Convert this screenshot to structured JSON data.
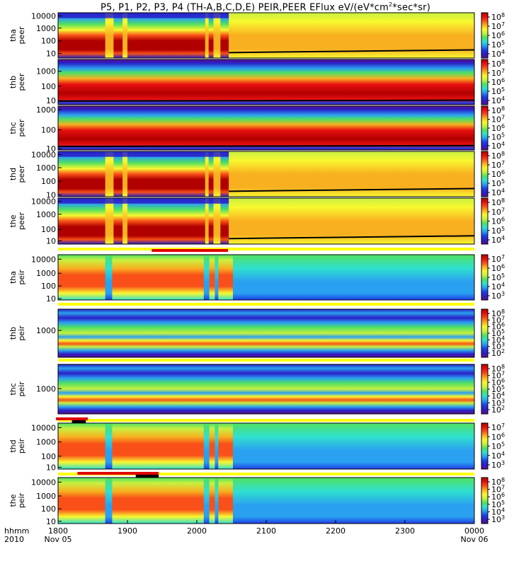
{
  "title_prefix": "P5, P1, P2, P3, P4 (TH-A,B,C,D,E) PEIR,PEER EFlux eV/(eV*cm",
  "title_sup": "2",
  "title_suffix": "*sec*sr)",
  "colors": {
    "scale": [
      "#5b0f8c",
      "#2a20c8",
      "#1f3fe6",
      "#2aa0f0",
      "#30e0d0",
      "#50e060",
      "#c8f040",
      "#f8f830",
      "#f8b020",
      "#f85018",
      "#e81010",
      "#b00000"
    ],
    "flag_red": "#e00000",
    "flag_black": "#000000",
    "flag_yellow": "#ffff00"
  },
  "x_axis": {
    "hhmm_label": "hhmm",
    "year_label": "2010",
    "ticks": [
      "1800",
      "1900",
      "2000",
      "2100",
      "2200",
      "2300",
      "0000"
    ],
    "date_left": "Nov 05",
    "date_right": "Nov 06"
  },
  "chart_data": [
    {
      "type": "heatmap",
      "id": "tha-peer",
      "ylabel": [
        "tha",
        "peer"
      ],
      "yticks": [
        "10000",
        "1000",
        "100",
        "10"
      ],
      "ylog": true,
      "cbar_ticks": [
        "10^8",
        "10^7",
        "10^6",
        "10^5",
        "10^4"
      ],
      "regimes": [
        {
          "x": [
            1800,
            2050
          ],
          "state": "magnetosheath-like hot (red low energy, yellow high)"
        },
        {
          "x": [
            2050,
            2400
          ],
          "state": "yellow/orange broad"
        }
      ]
    },
    {
      "type": "heatmap",
      "id": "thb-peer",
      "ylabel": [
        "thb",
        "peer"
      ],
      "yticks": [
        "1000",
        "100",
        "10"
      ],
      "ylog": true,
      "cbar_ticks": [
        "10^8",
        "10^7",
        "10^6",
        "10^5",
        "10^4"
      ]
    },
    {
      "type": "heatmap",
      "id": "thc-peer",
      "ylabel": [
        "thc",
        "peer"
      ],
      "yticks": [
        "1000",
        "100",
        "10"
      ],
      "ylog": true,
      "cbar_ticks": [
        "10^8",
        "10^7",
        "10^6",
        "10^5",
        "10^4"
      ]
    },
    {
      "type": "heatmap",
      "id": "thd-peer",
      "ylabel": [
        "thd",
        "peer"
      ],
      "yticks": [
        "10000",
        "1000",
        "100",
        "10"
      ],
      "ylog": true,
      "cbar_ticks": [
        "10^8",
        "10^7",
        "10^6",
        "10^5",
        "10^4"
      ]
    },
    {
      "type": "heatmap",
      "id": "the-peer",
      "ylabel": [
        "the",
        "peer"
      ],
      "yticks": [
        "10000",
        "1000",
        "100",
        "10"
      ],
      "ylog": true,
      "cbar_ticks": [
        "10^8",
        "10^7",
        "10^6",
        "10^5",
        "10^4"
      ]
    },
    {
      "type": "heatmap",
      "id": "tha-peir",
      "ylabel": [
        "tha",
        "peir"
      ],
      "yticks": [
        "10000",
        "1000",
        "100",
        "10"
      ],
      "ylog": true,
      "cbar_ticks": [
        "10^7",
        "10^6",
        "10^5",
        "10^4",
        "10^3"
      ]
    },
    {
      "type": "heatmap",
      "id": "thb-peir",
      "ylabel": [
        "thb",
        "peir"
      ],
      "yticks": [
        "1000"
      ],
      "ylog": true,
      "cbar_ticks": [
        "10^8",
        "10^7",
        "10^6",
        "10^5",
        "10^4",
        "10^3",
        "10^2"
      ]
    },
    {
      "type": "heatmap",
      "id": "thc-peir",
      "ylabel": [
        "thc",
        "peir"
      ],
      "yticks": [
        "1000"
      ],
      "ylog": true,
      "cbar_ticks": [
        "10^8",
        "10^7",
        "10^6",
        "10^5",
        "10^4",
        "10^3",
        "10^2"
      ]
    },
    {
      "type": "heatmap",
      "id": "thd-peir",
      "ylabel": [
        "thd",
        "peir"
      ],
      "yticks": [
        "10000",
        "1000",
        "100",
        "10"
      ],
      "ylog": true,
      "cbar_ticks": [
        "10^7",
        "10^6",
        "10^5",
        "10^4",
        "10^3"
      ]
    },
    {
      "type": "heatmap",
      "id": "the-peir",
      "ylabel": [
        "the",
        "peir"
      ],
      "yticks": [
        "10000",
        "1000",
        "100",
        "10"
      ],
      "ylog": true,
      "cbar_ticks": [
        "10^8",
        "10^7",
        "10^6",
        "10^5",
        "10^4",
        "10^3"
      ]
    }
  ]
}
